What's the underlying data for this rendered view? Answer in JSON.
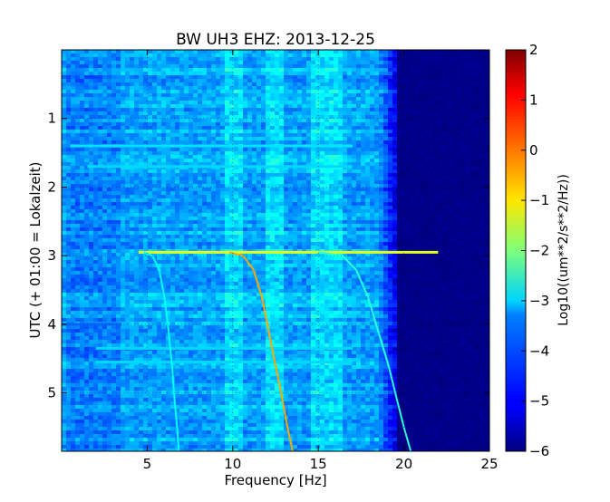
{
  "chart_data": {
    "type": "heatmap",
    "title": "BW UH3 EHZ: 2013-12-25",
    "xlabel": "Frequency [Hz]",
    "ylabel": "UTC (+ 01:00 = Lokalzeit)",
    "xlim": [
      0,
      25
    ],
    "ylim": [
      5.85,
      0
    ],
    "xticks": [
      5,
      10,
      15,
      20,
      25
    ],
    "xticklabels": [
      "5",
      "10",
      "15",
      "20",
      "25"
    ],
    "yticks": [
      1,
      2,
      3,
      4,
      5
    ],
    "yticklabels": [
      "1",
      "2",
      "3",
      "4",
      "5"
    ],
    "grid": true,
    "colormap": "jet",
    "colorbar": {
      "label": "Log10((um**2/s**2/Hz))",
      "min": -6,
      "max": 2,
      "ticks": [
        2,
        1,
        0,
        -1,
        -2,
        -3,
        -4,
        -5,
        -6
      ],
      "ticklabels": [
        "2",
        "1",
        "0",
        "−1",
        "−2",
        "−3",
        "−4",
        "−5",
        "−6"
      ]
    },
    "background_level": {
      "below_18_5Hz": -3.7,
      "above_18_5Hz": -6
    },
    "noise_bands_hz": [
      [
        9.5,
        10.5
      ],
      [
        14.5,
        16.5
      ],
      [
        12.0,
        13.0
      ]
    ],
    "quiet_bands_hz": [
      [
        0.2,
        3.5
      ]
    ],
    "horizontal_events": [
      {
        "time": 2.95,
        "x_start": 4.5,
        "x_end": 22.0,
        "level": -1.2
      },
      {
        "time": 4.0,
        "x_start": 0.0,
        "x_end": 3.5,
        "level": -4.2
      },
      {
        "time": 4.35,
        "x_start": 2.0,
        "x_end": 17.0,
        "level": -3.3
      },
      {
        "time": 4.55,
        "x_start": 2.0,
        "x_end": 17.0,
        "level": -3.3
      },
      {
        "time": 1.4,
        "x_start": 0.5,
        "x_end": 17.0,
        "level": -3.2
      },
      {
        "time": 1.7,
        "x_start": 1.5,
        "x_end": 17.0,
        "level": -3.3
      }
    ],
    "series": [
      {
        "x": [
          4.8,
          5.3,
          5.7,
          6.0,
          6.25,
          6.45,
          6.6,
          6.75,
          6.85
        ],
        "y": [
          2.95,
          3.0,
          3.2,
          3.6,
          4.1,
          4.6,
          5.1,
          5.5,
          5.85
        ],
        "level": -3.0
      },
      {
        "x": [
          9.8,
          10.6,
          11.2,
          11.7,
          12.1,
          12.5,
          12.9,
          13.2,
          13.5
        ],
        "y": [
          2.95,
          3.0,
          3.2,
          3.6,
          4.1,
          4.6,
          5.1,
          5.5,
          5.85
        ],
        "level": -0.3
      },
      {
        "x": [
          15.0,
          16.4,
          17.2,
          17.9,
          18.5,
          19.1,
          19.6,
          20.0,
          20.4
        ],
        "y": [
          2.95,
          3.0,
          3.2,
          3.6,
          4.1,
          4.6,
          5.1,
          5.5,
          5.85
        ],
        "level": -2.7
      }
    ]
  }
}
